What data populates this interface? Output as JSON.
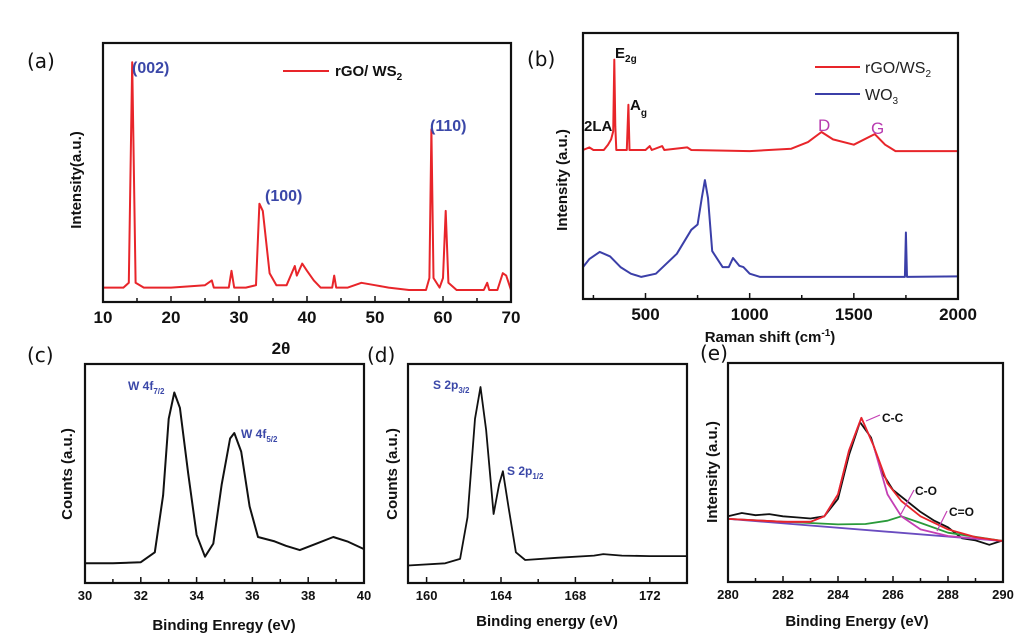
{
  "panels": {
    "a": {
      "label": "(a)",
      "legend": {
        "text": "rGO/ WS",
        "sub": "2"
      },
      "ylabel": "Intensity(a.u.)",
      "xlabel": "2θ",
      "annotations": [
        "(002)",
        "(100)",
        "(110)"
      ]
    },
    "b": {
      "label": "(b)",
      "legend": [
        {
          "text": "rGO/WS",
          "sub": "2"
        },
        {
          "text": "WO",
          "sub": "3"
        }
      ],
      "ylabel": "Intensity (a.u.)",
      "xlabel": {
        "text": "Raman shift (cm",
        "sup": "-1",
        "tail": ")"
      },
      "annotations": [
        {
          "text": "E",
          "sub": "2g"
        },
        {
          "text": "A",
          "sub": "g"
        },
        {
          "text": "2LA"
        },
        {
          "text": "D"
        },
        {
          "text": "G"
        }
      ]
    },
    "c": {
      "label": "(c)",
      "ylabel": "Counts (a.u.)",
      "xlabel": "Binding Enregy (eV)",
      "annotations": [
        {
          "text": "W 4f",
          "sub": "7/2"
        },
        {
          "text": "W 4f",
          "sub": "5/2"
        }
      ]
    },
    "d": {
      "label": "(d)",
      "ylabel": "Counts (a.u.)",
      "xlabel": "Binding energy (eV)",
      "annotations": [
        {
          "text": "S 2p",
          "sub": "3/2"
        },
        {
          "text": "S 2p",
          "sub": "1/2"
        }
      ]
    },
    "e": {
      "label": "(e)",
      "ylabel": "Intensity (a.u.)",
      "xlabel": "Binding Energy (eV)",
      "annotations": [
        "C-C",
        "C-O",
        "C=O"
      ]
    }
  },
  "colors": {
    "red": "#e8252a",
    "blue": "#3b3fa8",
    "black": "#111111",
    "magenta": "#c43fb4",
    "green": "#2a9a3a",
    "purple": "#6a4cc0",
    "label_blue": "#3a47a8"
  },
  "chart_data": [
    {
      "type": "line",
      "panel": "(a)",
      "xlabel": "2θ",
      "ylabel": "Intensity(a.u.)",
      "xlim": [
        10,
        70
      ],
      "ylim": [
        0,
        108
      ],
      "grid": false,
      "legend": "top-right",
      "xticks": [
        10,
        20,
        30,
        40,
        50,
        60,
        70
      ],
      "minor_step": 5,
      "series": [
        {
          "name": "rGO/ WS2",
          "color": "#e8252a",
          "x": [
            10,
            13,
            13.8,
            14.3,
            14.8,
            16,
            20,
            25,
            26,
            26.3,
            28.5,
            28.9,
            29.3,
            31,
            32.5,
            33,
            33.5,
            34,
            34.5,
            35.5,
            37,
            38.2,
            38.5,
            39.3,
            40,
            41,
            42,
            43.7,
            44,
            44.3,
            46,
            48,
            50,
            52,
            55,
            57.5,
            58,
            58.3,
            58.6,
            59.5,
            60,
            60.4,
            60.8,
            62,
            66,
            66.5,
            66.8,
            68,
            68.8,
            69.3,
            70
          ],
          "y": [
            6,
            6,
            8,
            100,
            8,
            6,
            6,
            7,
            9,
            6,
            6,
            13,
            6,
            6,
            7,
            41,
            38,
            25,
            12,
            7,
            7,
            15,
            11,
            16,
            13,
            9,
            6,
            6,
            11,
            6,
            6,
            8,
            7,
            6,
            5,
            5,
            10,
            72,
            10,
            6,
            10,
            38,
            8,
            5,
            5,
            8,
            5,
            5,
            12,
            11,
            5
          ]
        }
      ]
    },
    {
      "type": "line",
      "panel": "(b)",
      "xlabel": "Raman shift (cm-1)",
      "ylabel": "Intensity (a.u.)",
      "xlim": [
        200,
        2000
      ],
      "ylim": [
        0,
        100
      ],
      "grid": false,
      "legend": "top-right",
      "xticks": [
        500,
        1000,
        1500,
        2000
      ],
      "minor_step": 250,
      "series": [
        {
          "name": "rGO/WS2",
          "color": "#e8252a",
          "x": [
            200,
            230,
            250,
            300,
            320,
            335,
            345,
            350,
            355,
            360,
            410,
            418,
            423,
            500,
            520,
            530,
            580,
            590,
            700,
            720,
            1000,
            1200,
            1280,
            1345,
            1400,
            1500,
            1600,
            1650,
            1700,
            2000
          ],
          "y": [
            56,
            57,
            56,
            56,
            58,
            60,
            63,
            90,
            65,
            56,
            56,
            73,
            56,
            56,
            57.5,
            56,
            57.5,
            56,
            57,
            56,
            55.6,
            56.5,
            59,
            62.8,
            60,
            58,
            62,
            58,
            55.6,
            55.6
          ]
        },
        {
          "name": "WO3",
          "color": "#3b3fa8",
          "x": [
            200,
            230,
            280,
            330,
            380,
            430,
            480,
            550,
            650,
            720,
            750,
            770,
            785,
            800,
            820,
            870,
            900,
            920,
            950,
            970,
            1000,
            1050,
            1745,
            1750,
            1755,
            2000
          ],
          "y": [
            12,
            15,
            17.7,
            16,
            12,
            9.5,
            8.3,
            9.5,
            17,
            26,
            28,
            38,
            44.7,
            38,
            18,
            12,
            12,
            15.4,
            12.5,
            12,
            9.5,
            8.3,
            8.3,
            25,
            8.3,
            8.5
          ]
        }
      ]
    },
    {
      "type": "line",
      "panel": "(c)",
      "xlabel": "Binding Enregy (eV)",
      "ylabel": "Counts (a.u.)",
      "xlim": [
        30,
        40
      ],
      "ylim": [
        0,
        100
      ],
      "grid": false,
      "xticks": [
        30,
        32,
        34,
        36,
        38,
        40
      ],
      "minor_step": 1,
      "series": [
        {
          "color": "#111111",
          "x": [
            30,
            31,
            32,
            32.5,
            32.8,
            33,
            33.2,
            33.4,
            33.7,
            34,
            34.3,
            34.6,
            34.9,
            35.2,
            35.35,
            35.6,
            35.9,
            36.2,
            36.8,
            37.2,
            37.7,
            38.3,
            38.9,
            39.4,
            40
          ],
          "y": [
            9,
            9,
            9.5,
            14,
            40,
            75,
            87,
            80,
            50,
            22,
            12,
            18,
            45,
            66,
            68.5,
            60,
            35,
            21,
            19,
            17,
            15,
            18,
            21,
            19,
            15.5
          ]
        }
      ]
    },
    {
      "type": "line",
      "panel": "(d)",
      "xlabel": "Binding energy (eV)",
      "ylabel": "Counts (a.u.)",
      "xlim": [
        159,
        174
      ],
      "ylim": [
        0,
        100
      ],
      "grid": false,
      "xticks": [
        160,
        164,
        168,
        172
      ],
      "minor_step": 2,
      "series": [
        {
          "color": "#111111",
          "x": [
            159,
            161,
            161.8,
            162.2,
            162.6,
            162.9,
            163.2,
            163.6,
            163.9,
            164.1,
            164.4,
            164.8,
            165.3,
            167,
            169,
            169.5,
            170.5,
            172,
            174
          ],
          "y": [
            8,
            9,
            11,
            30,
            75,
            89.5,
            70,
            31.5,
            45,
            51,
            35,
            14,
            10.5,
            11.5,
            12.5,
            13.2,
            12.5,
            12.3,
            12.3
          ]
        }
      ]
    },
    {
      "type": "line",
      "panel": "(e)",
      "xlabel": "Binding Energy (eV)",
      "ylabel": "Intensity (a.u.)",
      "xlim": [
        280,
        290
      ],
      "ylim": [
        0,
        100
      ],
      "grid": false,
      "xticks": [
        280,
        282,
        284,
        286,
        288,
        290
      ],
      "minor_step": 1,
      "series": [
        {
          "color": "#111111",
          "x": [
            280,
            280.5,
            281,
            281.5,
            282,
            282.5,
            283,
            283.5,
            284,
            284.4,
            284.8,
            285.2,
            285.6,
            286,
            286.5,
            287,
            287.5,
            288,
            288.5,
            289,
            289.5,
            290
          ],
          "y": [
            30,
            31.5,
            30.5,
            31,
            30,
            29.5,
            29,
            30,
            38,
            58,
            73,
            66,
            50,
            42,
            37,
            32,
            28,
            25,
            20,
            19,
            17,
            19
          ]
        },
        {
          "color": "#6a4cc0",
          "x": [
            280,
            290
          ],
          "y": [
            28.8,
            18.7
          ]
        },
        {
          "color": "#2a9a3a",
          "x": [
            280,
            284,
            285,
            285.8,
            286.3,
            287,
            288,
            290
          ],
          "y": [
            28.8,
            26.3,
            26.5,
            28,
            30,
            27,
            22.5,
            18.7
          ]
        },
        {
          "color": "#c43fb4",
          "x": [
            280,
            282,
            283,
            283.5,
            284,
            284.4,
            284.85,
            285.3,
            285.8,
            286.3,
            287,
            288,
            290
          ],
          "y": [
            28.8,
            27.5,
            27.5,
            30,
            40,
            60,
            75,
            62,
            40,
            30,
            24,
            21,
            18.7
          ]
        },
        {
          "color": "#e8252a",
          "x": [
            280,
            282,
            283,
            283.5,
            284,
            284.4,
            284.85,
            285.3,
            285.8,
            286.3,
            287,
            288,
            289,
            290
          ],
          "y": [
            28.8,
            27.5,
            27.5,
            30,
            40,
            60,
            75,
            62,
            45,
            37,
            30,
            24,
            20.5,
            18.7
          ]
        }
      ]
    }
  ]
}
